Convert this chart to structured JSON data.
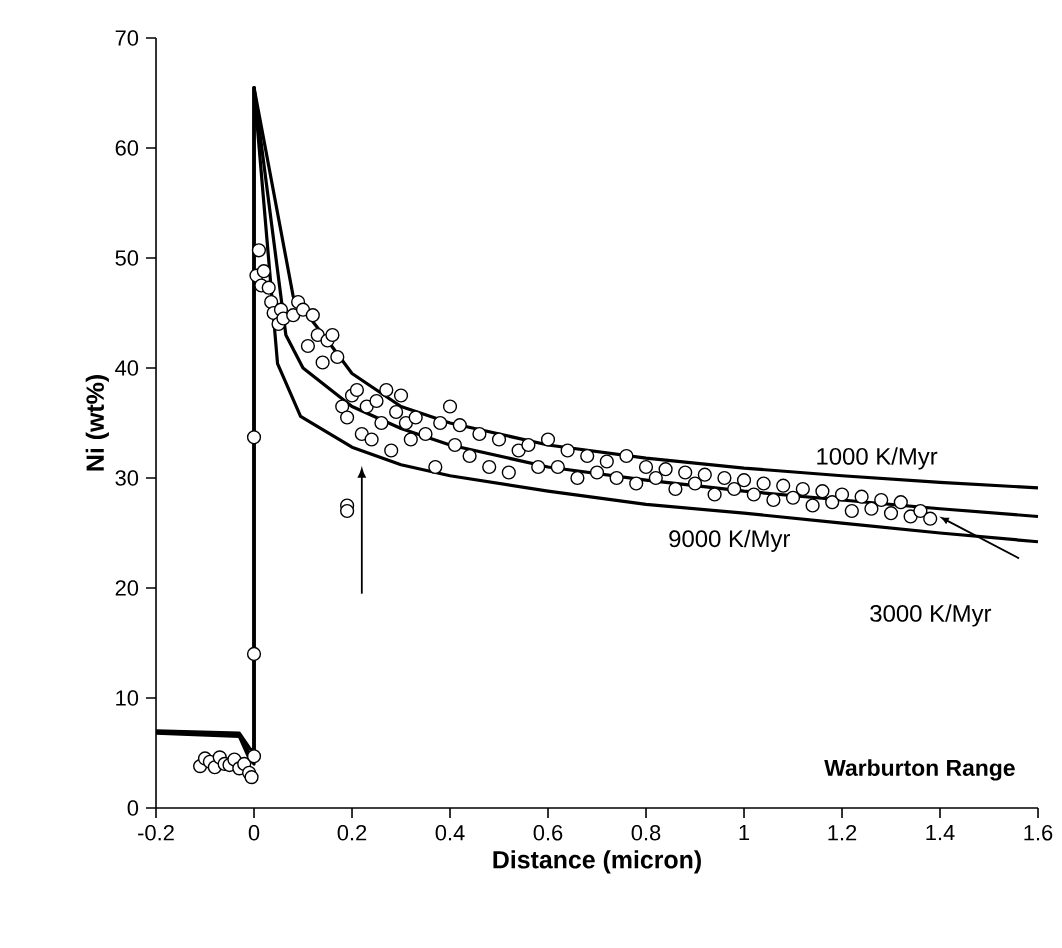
{
  "chart_data": {
    "type": "line",
    "xlabel": "Distance (micron)",
    "ylabel": "Ni (wt%)",
    "xlim": [
      -0.2,
      1.6
    ],
    "ylim": [
      0,
      70
    ],
    "xticks": [
      -0.2,
      0,
      0.2,
      0.4,
      0.6,
      0.8,
      1,
      1.2,
      1.4,
      1.6
    ],
    "yticks": [
      0,
      10,
      20,
      30,
      40,
      50,
      60,
      70
    ],
    "series": [
      {
        "color": "#000000",
        "marker": "none",
        "x": [
          -0.2,
          -0.03,
          -0.01,
          0,
          0,
          0.08,
          0.15,
          0.2,
          0.3,
          0.4,
          0.6,
          0.8,
          1.0,
          1.2,
          1.4,
          1.6
        ],
        "values": [
          7,
          6.8,
          5.5,
          5,
          65.5,
          46.5,
          42.5,
          39.5,
          36.5,
          35,
          33,
          31.8,
          30.9,
          30.2,
          29.6,
          29.1
        ]
      },
      {
        "color": "#000000",
        "marker": "none",
        "x": [
          -0.2,
          -0.03,
          -0.01,
          0,
          0,
          0.065,
          0.1,
          0.2,
          0.3,
          0.4,
          0.6,
          0.8,
          1.0,
          1.2,
          1.4,
          1.6
        ],
        "values": [
          6.9,
          6.6,
          5,
          4.5,
          65.5,
          43,
          40,
          36.5,
          34.5,
          33,
          31,
          29.8,
          28.8,
          28,
          27.2,
          26.5
        ]
      },
      {
        "color": "#000000",
        "marker": "none",
        "x": [
          -0.2,
          -0.03,
          -0.01,
          0,
          0,
          0.048,
          0.095,
          0.2,
          0.3,
          0.4,
          0.6,
          0.8,
          1.0,
          1.2,
          1.4,
          1.6
        ],
        "values": [
          6.8,
          6.5,
          4.5,
          4,
          65.5,
          40.4,
          35.6,
          32.8,
          31.2,
          30.2,
          28.8,
          27.6,
          26.8,
          25.9,
          25,
          24.2
        ]
      },
      {
        "type": "scatter",
        "color": "#000000",
        "marker": "circle",
        "x": [
          -0.11,
          -0.1,
          -0.09,
          -0.08,
          -0.07,
          -0.06,
          -0.05,
          -0.04,
          -0.03,
          -0.02,
          -0.01,
          -0.005,
          0,
          0,
          0,
          0.005,
          0.01,
          0.015,
          0.02,
          0.03,
          0.035,
          0.04,
          0.05,
          0.055,
          0.06,
          0.08,
          0.09,
          0.1,
          0.11,
          0.12,
          0.13,
          0.14,
          0.15,
          0.16,
          0.17,
          0.18,
          0.19,
          0.2,
          0.21,
          0.22,
          0.23,
          0.24,
          0.25,
          0.26,
          0.27,
          0.28,
          0.29,
          0.3,
          0.31,
          0.32,
          0.33,
          0.35,
          0.37,
          0.38,
          0.4,
          0.41,
          0.42,
          0.44,
          0.46,
          0.48,
          0.5,
          0.52,
          0.54,
          0.56,
          0.58,
          0.6,
          0.62,
          0.64,
          0.66,
          0.68,
          0.7,
          0.72,
          0.74,
          0.76,
          0.78,
          0.8,
          0.82,
          0.84,
          0.86,
          0.88,
          0.9,
          0.92,
          0.94,
          0.96,
          0.98,
          1.0,
          1.02,
          1.04,
          1.06,
          1.08,
          1.1,
          1.12,
          1.14,
          1.16,
          1.18,
          1.2,
          1.22,
          1.24,
          1.26,
          1.28,
          1.3,
          1.32,
          1.34,
          1.36,
          1.38,
          0.19,
          0.19
        ],
        "values": [
          3.8,
          4.5,
          4.2,
          3.7,
          4.6,
          4.0,
          3.9,
          4.4,
          3.6,
          4.0,
          3.2,
          2.8,
          4.7,
          14,
          33.7,
          48.4,
          50.7,
          47.5,
          48.8,
          47.3,
          46,
          45,
          44,
          45.3,
          44.5,
          44.8,
          46,
          45.3,
          42,
          44.8,
          43,
          40.5,
          42.5,
          43,
          41,
          36.5,
          35.5,
          37.5,
          38,
          34,
          36.5,
          33.5,
          37,
          35,
          38,
          32.5,
          36,
          37.5,
          35,
          33.5,
          35.5,
          34,
          31,
          35,
          36.5,
          33,
          34.8,
          32,
          34,
          31,
          33.5,
          30.5,
          32.5,
          33,
          31,
          33.5,
          31,
          32.5,
          30,
          32,
          30.5,
          31.5,
          30,
          32,
          29.5,
          31,
          30,
          30.8,
          29,
          30.5,
          29.5,
          30.3,
          28.5,
          30,
          29,
          29.8,
          28.5,
          29.5,
          28,
          29.3,
          28.2,
          29,
          27.5,
          28.8,
          27.8,
          28.5,
          27,
          28.3,
          27.2,
          28,
          26.8,
          27.8,
          26.5,
          27,
          26.3,
          27.5,
          27
        ]
      }
    ],
    "annotations": [
      "1000 K/Myr",
      "9000 K/Myr",
      "3000 K/Myr",
      "Warburton Range"
    ]
  }
}
